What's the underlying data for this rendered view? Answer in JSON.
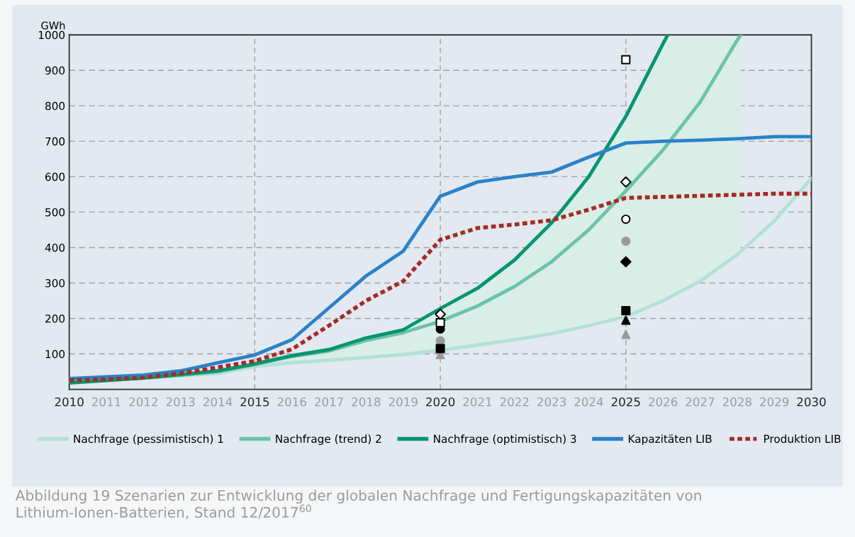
{
  "chart_data": {
    "type": "line",
    "ylabel": "GWh",
    "xlim": [
      2010,
      2030
    ],
    "xticks": [
      2010,
      2011,
      2012,
      2013,
      2014,
      2015,
      2016,
      2017,
      2018,
      2019,
      2020,
      2021,
      2022,
      2023,
      2024,
      2025,
      2026,
      2027,
      2028,
      2029,
      2030
    ],
    "ylim": [
      0,
      1000
    ],
    "yticks": [
      100,
      200,
      300,
      400,
      500,
      600,
      700,
      800,
      900,
      1000
    ],
    "grid": "y",
    "legend": "bottom",
    "line_style": "solid",
    "marker": "none",
    "ref_lines": [
      {
        "axis": "x",
        "value": 2015,
        "label": null,
        "line_style": "dashed"
      },
      {
        "axis": "x",
        "value": 2020,
        "label": null,
        "line_style": "dashed"
      },
      {
        "axis": "x",
        "value": 2025,
        "label": null,
        "line_style": "dashed"
      }
    ],
    "series": [
      {
        "name": "Nachfrage (pessimistisch) 1",
        "color": "#b3e0d6",
        "x": [
          2010,
          2011,
          2012,
          2013,
          2014,
          2015,
          2016,
          2017,
          2018,
          2019,
          2020,
          2021,
          2022,
          2023,
          2024,
          2025,
          2026,
          2027,
          2028,
          2029,
          2030
        ],
        "values": [
          22,
          27,
          32,
          38,
          45,
          65,
          75,
          82,
          90,
          98,
          110,
          125,
          140,
          157,
          180,
          205,
          250,
          305,
          380,
          475,
          595
        ]
      },
      {
        "name": "Nachfrage (trend) 2",
        "color": "#6cc2ab",
        "x": [
          2010,
          2011,
          2012,
          2013,
          2014,
          2015,
          2016,
          2017,
          2018,
          2019,
          2020,
          2021,
          2022,
          2023,
          2024,
          2025,
          2026,
          2027,
          2028,
          2028.1
        ],
        "values": [
          20,
          26,
          32,
          40,
          50,
          70,
          93,
          108,
          138,
          160,
          192,
          235,
          290,
          360,
          450,
          560,
          675,
          810,
          985,
          1000
        ],
        "lower": [
          22,
          27,
          32,
          38,
          45,
          65,
          75,
          82,
          90,
          98,
          110,
          125,
          140,
          157,
          180,
          205,
          250,
          305,
          380,
          390
        ],
        "upper": [
          18,
          25,
          32,
          42,
          52,
          72,
          95,
          112,
          145,
          168,
          228,
          285,
          365,
          470,
          600,
          770,
          975,
          1000,
          1000,
          1000
        ]
      },
      {
        "name": "Nachfrage (optimistisch) 3",
        "color": "#06956f",
        "x": [
          2010,
          2011,
          2012,
          2013,
          2014,
          2015,
          2016,
          2017,
          2018,
          2019,
          2020,
          2021,
          2022,
          2023,
          2024,
          2025,
          2026,
          2026.13
        ],
        "values": [
          18,
          25,
          32,
          42,
          52,
          72,
          95,
          112,
          145,
          168,
          228,
          285,
          365,
          470,
          600,
          770,
          975,
          1000
        ]
      },
      {
        "name": "Kapazitäten LIB",
        "color": "#2a82c9",
        "x": [
          2010,
          2011,
          2012,
          2013,
          2014,
          2015,
          2016,
          2017,
          2018,
          2019,
          2020,
          2021,
          2022,
          2023,
          2024,
          2025,
          2026,
          2027,
          2028,
          2029,
          2030
        ],
        "values": [
          30,
          35,
          40,
          52,
          75,
          97,
          140,
          230,
          320,
          390,
          545,
          585,
          600,
          613,
          655,
          695,
          700,
          703,
          707,
          713,
          713
        ]
      },
      {
        "name": "Produktion LIB",
        "color": "#a52a24",
        "line_style": "dotted",
        "x": [
          2010,
          2011,
          2012,
          2013,
          2014,
          2015,
          2016,
          2017,
          2018,
          2019,
          2020,
          2021,
          2022,
          2023,
          2024,
          2025,
          2026,
          2027,
          2028,
          2029,
          2030
        ],
        "values": [
          25,
          28,
          33,
          45,
          62,
          80,
          113,
          180,
          250,
          305,
          422,
          455,
          465,
          477,
          507,
          540,
          543,
          546,
          549,
          552,
          552
        ]
      },
      {
        "type": "scatter",
        "marker": "diamond",
        "color": "#000000",
        "x": [
          2025
        ],
        "values": [
          360
        ]
      },
      {
        "type": "scatter",
        "marker": "diamond",
        "color": "#ffffff",
        "x": [
          2020,
          2025
        ],
        "values": [
          212,
          585
        ]
      },
      {
        "type": "scatter",
        "marker": "circle",
        "color": "#000000",
        "x": [
          2020
        ],
        "values": [
          170
        ]
      },
      {
        "type": "scatter",
        "marker": "circle",
        "color": "#ffffff",
        "x": [
          2025
        ],
        "values": [
          480
        ]
      },
      {
        "type": "scatter",
        "marker": "triangle",
        "color": "#9a9a9a",
        "x": [
          2020,
          2025
        ],
        "values": [
          98,
          155
        ]
      },
      {
        "type": "scatter",
        "marker": "circle",
        "color": "#9a9a9a",
        "x": [
          2020,
          2025
        ],
        "values": [
          137,
          418
        ]
      },
      {
        "type": "scatter",
        "marker": "square",
        "color": "#ffffff",
        "x": [
          2020,
          2025
        ],
        "values": [
          188,
          930
        ]
      },
      {
        "type": "scatter",
        "marker": "square",
        "color": "#000000",
        "x": [
          2020,
          2025
        ],
        "values": [
          115,
          222
        ]
      },
      {
        "type": "scatter",
        "marker": "triangle",
        "color": "#000000",
        "x": [
          2025
        ],
        "values": [
          195
        ]
      }
    ],
    "annotations": [
      "Abbildung 19 Szenarien zur Entwicklung der globalen Nachfrage und Fertigungskapazitäten von Lithium-Ionen-Batterien, Stand 12/2017$^{60}$"
    ]
  }
}
